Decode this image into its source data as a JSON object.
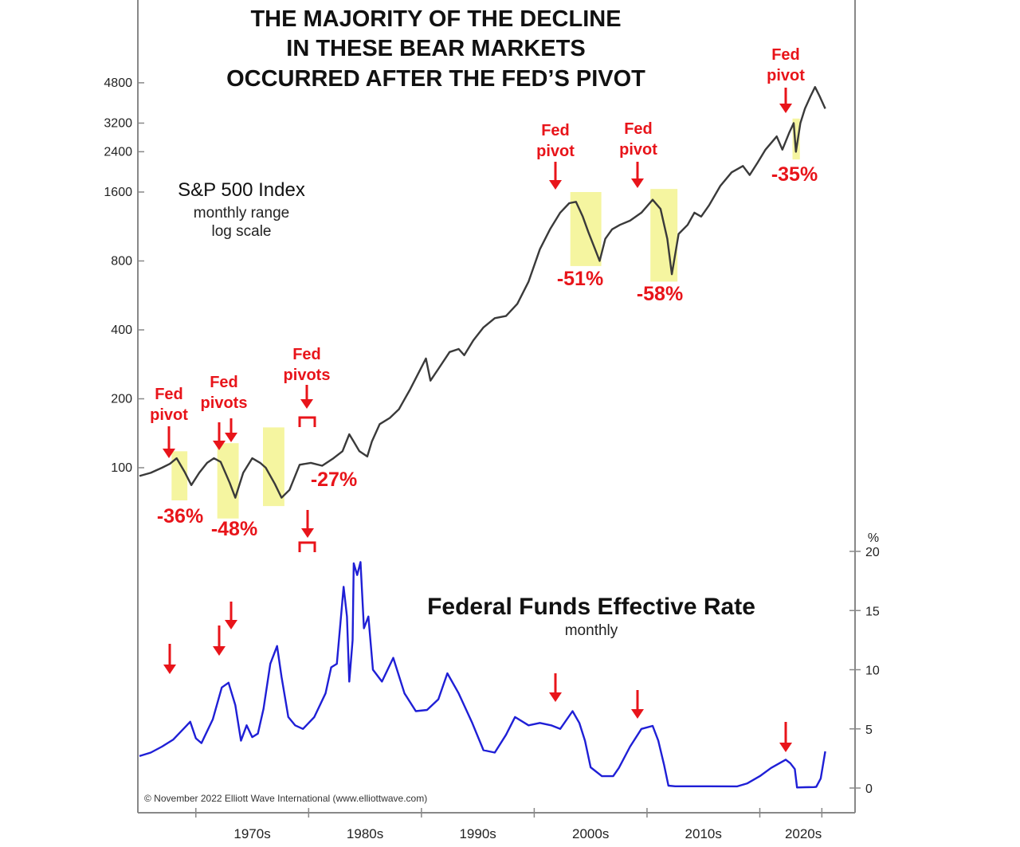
{
  "title_lines": [
    "THE MAJORITY OF THE DECLINE",
    "IN THESE BEAR MARKETS",
    "OCCURRED AFTER THE FED’S PIVOT"
  ],
  "sp500_label": {
    "name": "S&P 500 Index",
    "line2": "monthly range",
    "line3": "log scale"
  },
  "fed_label": {
    "name": "Federal Funds Effective Rate",
    "sub": "monthly"
  },
  "copyright": "© November 2022 Elliott Wave International (www.elliottwave.com)",
  "rate_unit": "%",
  "colors": {
    "sp500": "#3a3a3a",
    "fed_rate": "#1f1fd6",
    "highlight": "#f5f5a0",
    "annotation": "#e8141a",
    "axis": "#888888"
  },
  "chart_data": [
    {
      "type": "line",
      "yscale": "log",
      "ylim": [
        60,
        6000
      ],
      "yticks": [
        100,
        200,
        400,
        800,
        1600,
        2400,
        3200,
        4800
      ],
      "x_ticks": [
        "1970s",
        "1980s",
        "1990s",
        "2000s",
        "2010s",
        "2020s"
      ],
      "series": [
        {
          "name": "S&P 500 Index",
          "x": [
            1962.0,
            1963.0,
            1964.0,
            1964.7,
            1965.3,
            1966.0,
            1966.6,
            1967.3,
            1968.0,
            1968.6,
            1969.2,
            1970.0,
            1970.5,
            1971.2,
            1972.0,
            1972.7,
            1973.2,
            1974.0,
            1974.6,
            1975.3,
            1976.2,
            1977.2,
            1978.2,
            1979.2,
            1980.0,
            1980.6,
            1981.0,
            1981.5,
            1982.2,
            1982.6,
            1983.3,
            1984.2,
            1985.0,
            1986.0,
            1987.4,
            1987.8,
            1988.5,
            1989.5,
            1990.3,
            1990.8,
            1991.6,
            1992.5,
            1993.5,
            1994.5,
            1995.5,
            1996.5,
            1997.5,
            1998.4,
            1999.3,
            2000.1,
            2000.7,
            2001.3,
            2001.8,
            2002.4,
            2002.8,
            2003.3,
            2003.9,
            2004.6,
            2005.5,
            2006.5,
            2007.5,
            2008.2,
            2008.8,
            2009.2,
            2009.8,
            2010.6,
            2011.2,
            2011.8,
            2012.5,
            2013.5,
            2014.5,
            2015.5,
            2016.1,
            2016.8,
            2017.5,
            2018.5,
            2019.0,
            2019.6,
            2020.0,
            2020.2,
            2020.6,
            2021.0,
            2021.5,
            2021.9,
            2022.3,
            2022.8
          ],
          "values": [
            92,
            95,
            100,
            104,
            110,
            96,
            84,
            95,
            105,
            110,
            106,
            86,
            74,
            95,
            110,
            105,
            100,
            85,
            74,
            80,
            103,
            105,
            102,
            110,
            118,
            140,
            130,
            118,
            112,
            130,
            155,
            165,
            180,
            220,
            300,
            240,
            270,
            320,
            330,
            310,
            360,
            410,
            450,
            460,
            520,
            650,
            900,
            1100,
            1300,
            1430,
            1450,
            1250,
            1070,
            900,
            800,
            1000,
            1100,
            1150,
            1200,
            1300,
            1480,
            1350,
            1000,
            700,
            1050,
            1150,
            1300,
            1250,
            1400,
            1700,
            1950,
            2080,
            1900,
            2150,
            2450,
            2800,
            2450,
            2900,
            3200,
            2400,
            3200,
            3700,
            4200,
            4600,
            4200,
            3700
          ]
        }
      ]
    },
    {
      "type": "line",
      "ylim": [
        0,
        20
      ],
      "yticks": [
        0,
        5,
        10,
        15,
        20
      ],
      "series": [
        {
          "name": "Federal Funds Effective Rate",
          "x": [
            1962.0,
            1963.0,
            1964.0,
            1965.0,
            1966.0,
            1966.5,
            1967.0,
            1967.5,
            1968.5,
            1969.3,
            1969.9,
            1970.5,
            1971.0,
            1971.5,
            1972.0,
            1972.5,
            1973.0,
            1973.6,
            1974.2,
            1974.6,
            1975.2,
            1975.8,
            1976.5,
            1977.5,
            1978.5,
            1979.0,
            1979.5,
            1980.1,
            1980.4,
            1980.6,
            1980.9,
            1981.0,
            1981.3,
            1981.6,
            1981.9,
            1982.3,
            1982.7,
            1983.5,
            1984.5,
            1985.5,
            1986.5,
            1987.5,
            1988.5,
            1989.3,
            1990.3,
            1991.5,
            1992.5,
            1993.5,
            1994.5,
            1995.3,
            1996.5,
            1997.5,
            1998.5,
            1999.3,
            2000.4,
            2001.0,
            2001.5,
            2002.0,
            2003.0,
            2004.0,
            2004.5,
            2005.5,
            2006.5,
            2007.5,
            2008.0,
            2008.5,
            2008.9,
            2009.5,
            2012.0,
            2015.0,
            2015.9,
            2017.0,
            2018.0,
            2019.3,
            2019.7,
            2020.1,
            2020.3,
            2021.0,
            2021.8,
            2022.0,
            2022.4,
            2022.8
          ],
          "values": [
            2.7,
            3.0,
            3.5,
            4.1,
            5.1,
            5.6,
            4.2,
            3.8,
            5.8,
            8.5,
            8.9,
            7.0,
            4.0,
            5.3,
            4.3,
            4.6,
            6.7,
            10.5,
            12.0,
            9.4,
            6.0,
            5.3,
            5.0,
            6.0,
            8.0,
            10.2,
            10.5,
            17.0,
            14.5,
            9.0,
            12.5,
            19.0,
            18.0,
            19.1,
            13.5,
            14.5,
            10.0,
            9.0,
            11.0,
            8.0,
            6.5,
            6.6,
            7.5,
            9.7,
            8.0,
            5.5,
            3.2,
            3.0,
            4.5,
            6.0,
            5.3,
            5.5,
            5.3,
            5.0,
            6.5,
            5.5,
            4.0,
            1.75,
            1.0,
            1.0,
            1.7,
            3.5,
            5.0,
            5.25,
            4.0,
            2.0,
            0.2,
            0.15,
            0.15,
            0.14,
            0.4,
            1.0,
            1.7,
            2.4,
            2.1,
            1.6,
            0.05,
            0.07,
            0.08,
            0.1,
            0.8,
            3.1
          ]
        }
      ]
    }
  ],
  "annotations": [
    {
      "label1": "Fed",
      "label2": "pivot",
      "pct": "-36%"
    },
    {
      "label1": "Fed",
      "label2": "pivots",
      "pct": "-48%"
    },
    {
      "label1": "Fed",
      "label2": "pivots",
      "pct": "-27%"
    },
    {
      "label1": "Fed",
      "label2": "pivot",
      "pct": "-51%"
    },
    {
      "label1": "Fed",
      "label2": "pivot",
      "pct": "-58%"
    },
    {
      "label1": "Fed",
      "label2": "pivot",
      "pct": "-35%"
    }
  ]
}
